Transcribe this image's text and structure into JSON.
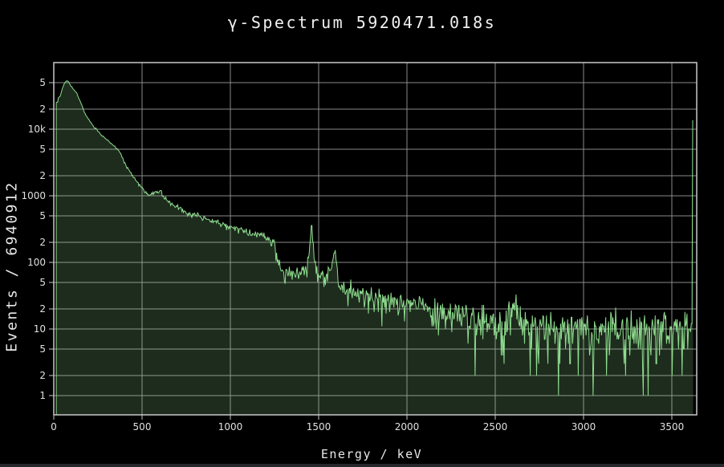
{
  "window": {
    "background": "#000000",
    "bottom_strip_color": "#25272b"
  },
  "chart": {
    "title": "γ-Spectrum 5920471.018s",
    "x_title": "Energy / keV",
    "y_title": "Events / 6940912",
    "colors": {
      "line": "#8fdc8f",
      "fill": "rgba(143,220,143,0.20)",
      "grid": "#8a8a8a",
      "frame": "#c8c8c8",
      "tick_text": "#e0e0e0",
      "title_text": "#f0f0f0",
      "background": "#000000"
    },
    "x_ticks": [
      {
        "value": 0,
        "label": "0"
      },
      {
        "value": 500,
        "label": "500"
      },
      {
        "value": 1000,
        "label": "1000"
      },
      {
        "value": 1500,
        "label": "1500"
      },
      {
        "value": 2000,
        "label": "2000"
      },
      {
        "value": 2500,
        "label": "2500"
      },
      {
        "value": 3000,
        "label": "3000"
      },
      {
        "value": 3500,
        "label": "3500"
      }
    ],
    "y_ticks": [
      {
        "value": 1,
        "label": "1"
      },
      {
        "value": 2,
        "label": "2"
      },
      {
        "value": 5,
        "label": "5"
      },
      {
        "value": 10,
        "label": "10"
      },
      {
        "value": 20,
        "label": "2"
      },
      {
        "value": 50,
        "label": "5"
      },
      {
        "value": 100,
        "label": "100"
      },
      {
        "value": 200,
        "label": "2"
      },
      {
        "value": 500,
        "label": "5"
      },
      {
        "value": 1000,
        "label": "1000"
      },
      {
        "value": 2000,
        "label": "2"
      },
      {
        "value": 5000,
        "label": "5"
      },
      {
        "value": 10000,
        "label": "10k"
      },
      {
        "value": 20000,
        "label": "2"
      },
      {
        "value": 50000,
        "label": "5"
      }
    ]
  },
  "chart_data": {
    "type": "area",
    "title": "γ-Spectrum 5920471.018s",
    "xlabel": "Energy / keV",
    "ylabel": "Events / 6940912",
    "measurement_time_s": 5920471.018,
    "total_events": 6940912,
    "y_scale": "log",
    "y_range": [
      0.51,
      100000
    ],
    "x_range_kev": [
      0,
      3641
    ],
    "grid": true,
    "legend": false,
    "notable_peaks_kev": [
      1460,
      1588,
      2614,
      3618
    ],
    "envelope_points": [
      [
        14,
        25000
      ],
      [
        22,
        25500
      ],
      [
        24,
        30000
      ],
      [
        36,
        31000
      ],
      [
        50,
        42000
      ],
      [
        62,
        50000
      ],
      [
        72,
        53500
      ],
      [
        82,
        52000
      ],
      [
        95,
        45500
      ],
      [
        110,
        40000
      ],
      [
        127,
        36000
      ],
      [
        145,
        28000
      ],
      [
        160,
        22500
      ],
      [
        175,
        17500
      ],
      [
        190,
        15000
      ],
      [
        205,
        13200
      ],
      [
        220,
        11500
      ],
      [
        235,
        10300
      ],
      [
        250,
        9400
      ],
      [
        270,
        8200
      ],
      [
        290,
        7300
      ],
      [
        310,
        6600
      ],
      [
        330,
        6000
      ],
      [
        350,
        5300
      ],
      [
        365,
        4800
      ],
      [
        378,
        4300
      ],
      [
        395,
        3400
      ],
      [
        415,
        2700
      ],
      [
        435,
        2200
      ],
      [
        460,
        1800
      ],
      [
        485,
        1450
      ],
      [
        505,
        1250
      ],
      [
        525,
        1100
      ],
      [
        545,
        1030
      ],
      [
        565,
        1090
      ],
      [
        580,
        1150
      ],
      [
        592,
        1060
      ],
      [
        605,
        1190
      ],
      [
        618,
        1000
      ],
      [
        635,
        860
      ],
      [
        660,
        760
      ],
      [
        690,
        680
      ],
      [
        720,
        620
      ],
      [
        760,
        550
      ],
      [
        800,
        510
      ],
      [
        840,
        465
      ],
      [
        880,
        430
      ],
      [
        920,
        395
      ],
      [
        960,
        370
      ],
      [
        1000,
        345
      ],
      [
        1040,
        320
      ],
      [
        1080,
        300
      ],
      [
        1120,
        278
      ],
      [
        1160,
        258
      ],
      [
        1200,
        235
      ],
      [
        1230,
        215
      ],
      [
        1248,
        200
      ],
      [
        1258,
        140
      ],
      [
        1268,
        100
      ],
      [
        1280,
        82
      ],
      [
        1300,
        73
      ],
      [
        1330,
        68
      ],
      [
        1360,
        67
      ],
      [
        1390,
        69
      ],
      [
        1415,
        74
      ],
      [
        1435,
        88
      ],
      [
        1448,
        150
      ],
      [
        1458,
        345
      ],
      [
        1462,
        340
      ],
      [
        1472,
        160
      ],
      [
        1482,
        90
      ],
      [
        1495,
        68
      ],
      [
        1510,
        60
      ],
      [
        1530,
        58
      ],
      [
        1550,
        62
      ],
      [
        1565,
        75
      ],
      [
        1578,
        105
      ],
      [
        1588,
        128
      ],
      [
        1596,
        110
      ],
      [
        1606,
        68
      ],
      [
        1616,
        48
      ],
      [
        1630,
        42
      ],
      [
        1650,
        40
      ],
      [
        1680,
        38
      ],
      [
        1710,
        36
      ],
      [
        1740,
        34
      ],
      [
        1780,
        32
      ],
      [
        1820,
        30
      ],
      [
        1860,
        28.5
      ],
      [
        1900,
        27
      ],
      [
        1940,
        26
      ],
      [
        1980,
        25
      ],
      [
        2020,
        24
      ],
      [
        2060,
        22.5
      ],
      [
        2100,
        21
      ],
      [
        2150,
        19.5
      ],
      [
        2200,
        18
      ],
      [
        2250,
        16.5
      ],
      [
        2300,
        15
      ],
      [
        2350,
        13.5
      ],
      [
        2400,
        12.3
      ],
      [
        2450,
        11.5
      ],
      [
        2500,
        11
      ],
      [
        2550,
        11.5
      ],
      [
        2580,
        16
      ],
      [
        2600,
        22
      ],
      [
        2614,
        24
      ],
      [
        2628,
        16
      ],
      [
        2645,
        11
      ],
      [
        2680,
        9.8
      ],
      [
        2720,
        9.3
      ],
      [
        2760,
        9.2
      ],
      [
        2800,
        9.3
      ],
      [
        2850,
        8.8
      ],
      [
        2900,
        9.2
      ],
      [
        2950,
        9.6
      ],
      [
        3000,
        9.8
      ],
      [
        3100,
        10
      ],
      [
        3200,
        10
      ],
      [
        3300,
        10
      ],
      [
        3400,
        10
      ],
      [
        3500,
        10
      ],
      [
        3560,
        10
      ],
      [
        3600,
        10
      ],
      [
        3610,
        10
      ],
      [
        3615,
        12
      ],
      [
        3617,
        13500
      ],
      [
        3621,
        13500
      ]
    ],
    "deep_dips": [
      [
        2386,
        2
      ],
      [
        2697,
        2
      ],
      [
        2857,
        1
      ]
    ],
    "end_spike": {
      "energy_kev": 3618,
      "counts": 13500
    }
  }
}
